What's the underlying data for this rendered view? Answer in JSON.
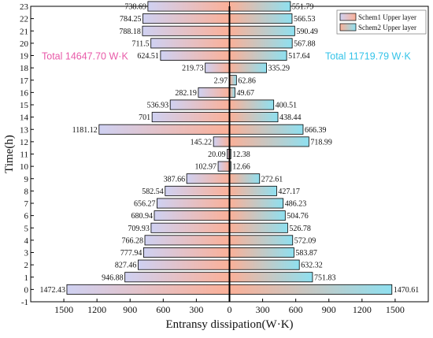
{
  "chart_data": {
    "type": "bar",
    "orientation": "horizontal-diverging",
    "xlabel": "Entransy dissipation(W·K)",
    "ylabel": "Time(h)",
    "xlim": [
      -1800,
      1800
    ],
    "x_ticks": [
      -1500,
      -1200,
      -900,
      -600,
      -300,
      0,
      300,
      600,
      900,
      1200,
      1500
    ],
    "x_tick_labels": [
      "1500",
      "1200",
      "900",
      "600",
      "300",
      "0",
      "300",
      "600",
      "900",
      "1200",
      "1500"
    ],
    "ylim": [
      -1,
      23
    ],
    "y_ticks": [
      -1,
      0,
      1,
      2,
      3,
      4,
      5,
      6,
      7,
      8,
      9,
      10,
      11,
      12,
      13,
      14,
      15,
      16,
      17,
      18,
      19,
      20,
      21,
      22,
      23
    ],
    "y_tick_labels": [
      "-1",
      "0",
      "1",
      "2",
      "3",
      "4",
      "5",
      "6",
      "7",
      "8",
      "9",
      "10",
      "11",
      "12",
      "13",
      "14",
      "15",
      "16",
      "17",
      "18",
      "19",
      "20",
      "21",
      "22",
      "23"
    ],
    "categories": [
      0,
      1,
      2,
      3,
      4,
      5,
      6,
      7,
      8,
      9,
      10,
      11,
      12,
      13,
      14,
      15,
      16,
      17,
      18,
      19,
      20,
      21,
      22,
      23
    ],
    "series": [
      {
        "name": "Schem1 Upper layer",
        "side": "left",
        "colors": [
          "#cfd1f2",
          "#fbb098"
        ],
        "values": [
          1472.43,
          946.88,
          827.46,
          777.94,
          766.28,
          709.93,
          680.94,
          656.27,
          582.54,
          387.66,
          102.97,
          20.09,
          145.22,
          1181.12,
          701,
          536.93,
          282.19,
          2.97,
          219.73,
          624.51,
          711.5,
          788.18,
          784.25,
          738.69
        ],
        "value_labels": [
          "1472.43",
          "946.88",
          "827.46",
          "777.94",
          "766.28",
          "709.93",
          "680.94",
          "656.27",
          "582.54",
          "387.66",
          "102.97",
          "20.09",
          "145.22",
          "1181.12",
          "701",
          "536.93",
          "282.19",
          "2.97",
          "219.73",
          "624.51",
          "711.5",
          "788.18",
          "784.25",
          "738.69"
        ]
      },
      {
        "name": "Schem2 Upper layer",
        "side": "right",
        "colors": [
          "#fbb098",
          "#8fe0f0"
        ],
        "values": [
          1470.61,
          751.83,
          632.32,
          583.87,
          572.09,
          526.78,
          504.76,
          486.23,
          427.17,
          272.61,
          12.66,
          12.38,
          718.99,
          666.39,
          438.44,
          400.51,
          49.67,
          62.86,
          335.29,
          517.64,
          567.88,
          590.49,
          566.53,
          551.79
        ],
        "value_labels": [
          "1470.61",
          "751.83",
          "632.32",
          "583.87",
          "572.09",
          "526.78",
          "504.76",
          "486.23",
          "427.17",
          "272.61",
          "12.66",
          "12.38",
          "718.99",
          "666.39",
          "438.44",
          "400.51",
          "49.67",
          "62.86",
          "335.29",
          "517.64",
          "567.88",
          "590.49",
          "566.53",
          "551.79"
        ]
      }
    ],
    "annotations": [
      {
        "text": "Total  14647.70 W·K",
        "color": "#e85aa8",
        "side": "left"
      },
      {
        "text": "Total  11719.79 W·K",
        "color": "#33c3e8",
        "side": "right"
      }
    ],
    "legend": {
      "position": "top-right",
      "entries": [
        "Schem1 Upper layer",
        "Schem2 Upper layer"
      ]
    },
    "grid": false
  }
}
